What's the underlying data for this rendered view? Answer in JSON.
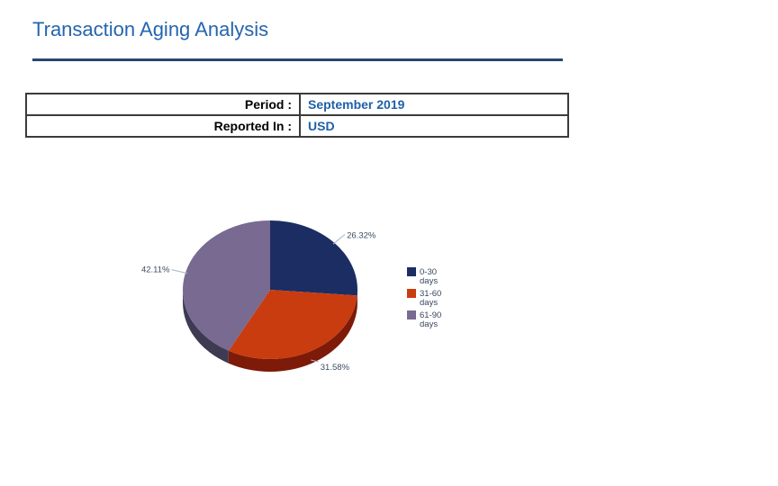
{
  "header": {
    "title": "Transaction Aging Analysis",
    "title_color": "#2565ae",
    "rule_color": "#27476e"
  },
  "info_table": {
    "rows": [
      {
        "label": "Period :",
        "value": "September 2019"
      },
      {
        "label": "Reported In :",
        "value": "USD"
      }
    ],
    "label_color": "#000000",
    "value_color": "#2060a8",
    "border_color": "#3b3b3b"
  },
  "chart_data": {
    "type": "pie",
    "title": "",
    "effect": "3d",
    "start_angle_deg": -90,
    "direction": "clockwise",
    "categories": [
      "0-30 days",
      "31-60 days",
      "61-90 days"
    ],
    "values": [
      26.32,
      31.58,
      42.11
    ],
    "labels": [
      "26.32%",
      "31.58%",
      "42.11%"
    ],
    "colors": [
      "#1b2d63",
      "#c83c10",
      "#786a90"
    ],
    "side_colors": [
      "#101d42",
      "#7d1a08",
      "#3e3a52"
    ],
    "label_color": "#3a4c63",
    "leader_color": "#aab4c4",
    "legend_position": "right",
    "legend_text_color": "#37465e"
  }
}
